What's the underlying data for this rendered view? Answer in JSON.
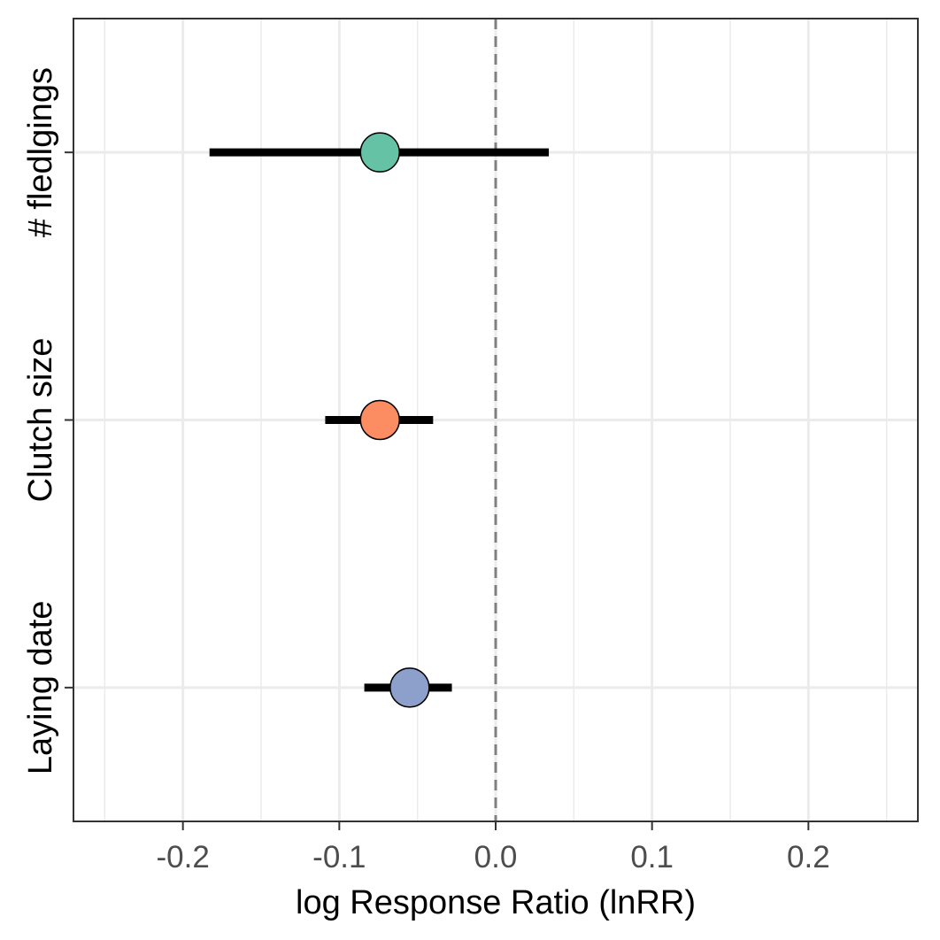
{
  "chart_data": {
    "type": "forest",
    "title": "",
    "xlabel": "log Response Ratio (lnRR)",
    "ylabel": "",
    "xlim": [
      -0.27,
      0.27
    ],
    "x_ticks": [
      -0.2,
      -0.1,
      0.0,
      0.1,
      0.2
    ],
    "x_tick_labels": [
      "-0.2",
      "-0.1",
      "0.0",
      "0.1",
      "0.2"
    ],
    "x_minor_ticks": [
      -0.25,
      -0.15,
      -0.05,
      0.05,
      0.15,
      0.25
    ],
    "categories": [
      "# fledlgings",
      "Clutch size",
      "Laying date"
    ],
    "estimates": [
      -0.074,
      -0.074,
      -0.055
    ],
    "ci_lower": [
      -0.183,
      -0.109,
      -0.084
    ],
    "ci_upper": [
      0.034,
      -0.04,
      -0.028
    ],
    "point_colors": [
      "#66c2a5",
      "#fc8d62",
      "#8da0cb"
    ],
    "reference_line": 0,
    "grid": true,
    "legend": "none"
  }
}
